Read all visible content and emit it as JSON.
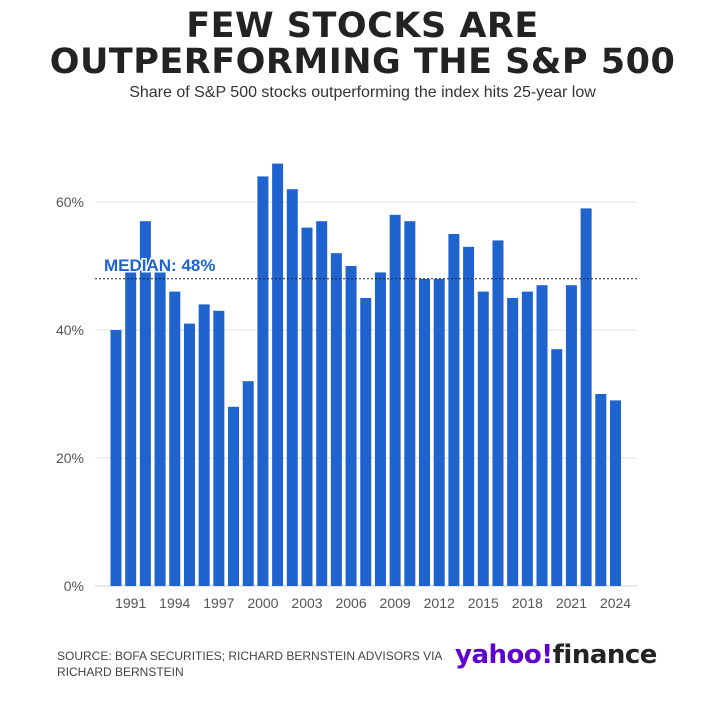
{
  "title_line1": "FEW STOCKS ARE",
  "title_line2": "OUTPERFORMING THE S&P 500",
  "subtitle": "Share of S&P 500 stocks outperforming the index hits 25-year low",
  "source_line1": "SOURCE: BOFA SECURITIES; RICHARD BERNSTEIN ADVISORS VIA",
  "source_line2": "RICHARD BERNSTEIN",
  "logo": {
    "yahoo": "yahoo!",
    "finance": "finance"
  },
  "colors": {
    "bar": "#1f63cf",
    "median_label": "#1f63cf",
    "grid": "#e2e2e2",
    "axis_text": "#555555"
  },
  "chart_data": {
    "type": "bar",
    "x": [
      1990,
      1991,
      1992,
      1993,
      1994,
      1995,
      1996,
      1997,
      1998,
      1999,
      2000,
      2001,
      2002,
      2003,
      2004,
      2005,
      2006,
      2007,
      2008,
      2009,
      2010,
      2011,
      2012,
      2013,
      2014,
      2015,
      2016,
      2017,
      2018,
      2019,
      2020,
      2021,
      2022,
      2023,
      2024
    ],
    "values": [
      40,
      49,
      57,
      49,
      46,
      41,
      44,
      43,
      28,
      32,
      64,
      66,
      62,
      56,
      57,
      52,
      50,
      45,
      49,
      58,
      57,
      48,
      48,
      55,
      53,
      46,
      54,
      45,
      46,
      47,
      37,
      47,
      59,
      30,
      29
    ],
    "xticks": [
      "1991",
      "1994",
      "1997",
      "2000",
      "2003",
      "2006",
      "2009",
      "2012",
      "2015",
      "2018",
      "2021",
      "2024"
    ],
    "xtick_years": [
      1991,
      1994,
      1997,
      2000,
      2003,
      2006,
      2009,
      2012,
      2015,
      2018,
      2021,
      2024
    ],
    "yticks": [
      "0%",
      "20%",
      "40%",
      "60%"
    ],
    "ytick_values": [
      0,
      20,
      40,
      60
    ],
    "ylim": [
      0,
      66
    ],
    "median": 48,
    "median_label": "MEDIAN: 48%",
    "grid": true
  }
}
